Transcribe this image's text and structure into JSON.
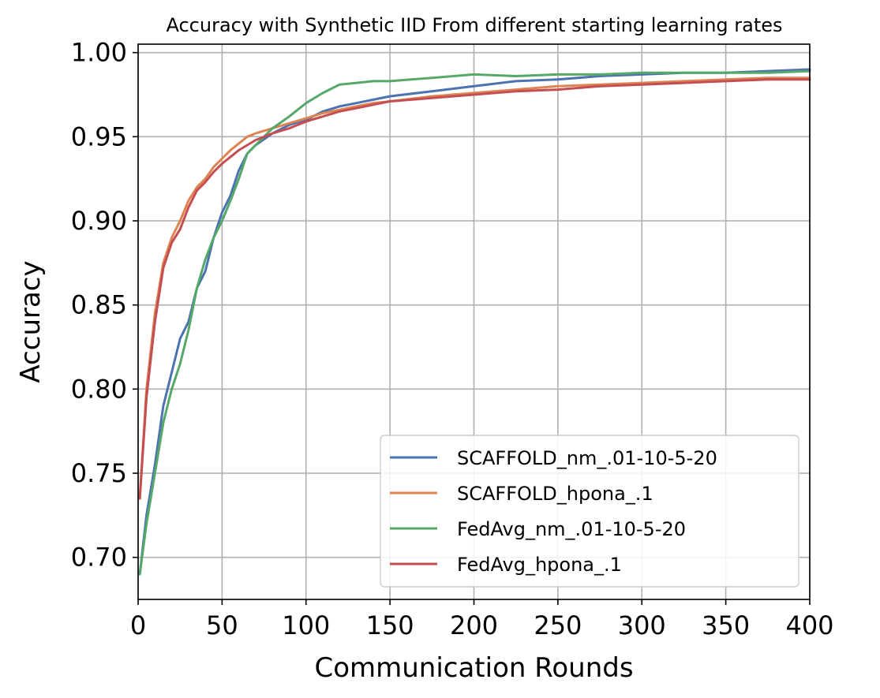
{
  "chart_data": {
    "type": "line",
    "title": "Accuracy with Synthetic IID From different starting learning rates",
    "xlabel": "Communication Rounds",
    "ylabel": "Accuracy",
    "xlim": [
      0,
      400
    ],
    "ylim": [
      0.675,
      1.005
    ],
    "xticks": [
      0,
      50,
      100,
      150,
      200,
      250,
      300,
      350,
      400
    ],
    "yticks": [
      0.7,
      0.75,
      0.8,
      0.85,
      0.9,
      0.95,
      1.0
    ],
    "xtick_labels": [
      "0",
      "50",
      "100",
      "150",
      "200",
      "250",
      "300",
      "350",
      "400"
    ],
    "ytick_labels": [
      "0.70",
      "0.75",
      "0.80",
      "0.85",
      "0.90",
      "0.95",
      "1.00"
    ],
    "grid": true,
    "legend_position": "bottom-right",
    "series": [
      {
        "name": "SCAFFOLD_nm_.01-10-5-20",
        "color": "#4c72b0",
        "x": [
          1,
          5,
          10,
          15,
          20,
          25,
          30,
          35,
          40,
          45,
          50,
          55,
          60,
          65,
          70,
          80,
          90,
          100,
          110,
          120,
          130,
          140,
          150,
          175,
          200,
          225,
          250,
          275,
          300,
          325,
          350,
          375,
          400
        ],
        "y": [
          0.69,
          0.725,
          0.755,
          0.79,
          0.81,
          0.83,
          0.84,
          0.86,
          0.87,
          0.89,
          0.905,
          0.915,
          0.93,
          0.94,
          0.945,
          0.952,
          0.957,
          0.96,
          0.965,
          0.968,
          0.97,
          0.972,
          0.974,
          0.977,
          0.98,
          0.983,
          0.984,
          0.986,
          0.987,
          0.988,
          0.988,
          0.989,
          0.99
        ]
      },
      {
        "name": "SCAFFOLD_hpona_.1",
        "color": "#dd8452",
        "x": [
          1,
          5,
          10,
          15,
          20,
          25,
          30,
          35,
          40,
          45,
          50,
          55,
          60,
          65,
          70,
          80,
          90,
          100,
          110,
          120,
          130,
          140,
          150,
          175,
          200,
          225,
          250,
          275,
          300,
          325,
          350,
          375,
          400
        ],
        "y": [
          0.735,
          0.8,
          0.845,
          0.875,
          0.89,
          0.9,
          0.912,
          0.92,
          0.925,
          0.932,
          0.937,
          0.942,
          0.946,
          0.95,
          0.952,
          0.955,
          0.958,
          0.961,
          0.964,
          0.966,
          0.968,
          0.97,
          0.971,
          0.974,
          0.976,
          0.978,
          0.98,
          0.981,
          0.982,
          0.983,
          0.984,
          0.985,
          0.985
        ]
      },
      {
        "name": "FedAvg_nm_.01-10-5-20",
        "color": "#55a868",
        "x": [
          1,
          5,
          10,
          15,
          20,
          25,
          30,
          35,
          40,
          45,
          50,
          55,
          60,
          65,
          70,
          80,
          90,
          100,
          110,
          120,
          130,
          140,
          150,
          175,
          200,
          225,
          250,
          275,
          300,
          325,
          350,
          375,
          400
        ],
        "y": [
          0.69,
          0.72,
          0.75,
          0.78,
          0.8,
          0.815,
          0.835,
          0.86,
          0.877,
          0.89,
          0.9,
          0.912,
          0.925,
          0.94,
          0.945,
          0.955,
          0.962,
          0.97,
          0.976,
          0.981,
          0.982,
          0.983,
          0.983,
          0.985,
          0.987,
          0.986,
          0.987,
          0.987,
          0.988,
          0.988,
          0.988,
          0.988,
          0.989
        ]
      },
      {
        "name": "FedAvg_hpona_.1",
        "color": "#c44e52",
        "x": [
          1,
          5,
          10,
          15,
          20,
          25,
          30,
          35,
          40,
          45,
          50,
          55,
          60,
          65,
          70,
          80,
          90,
          100,
          110,
          120,
          130,
          140,
          150,
          175,
          200,
          225,
          250,
          275,
          300,
          325,
          350,
          375,
          400
        ],
        "y": [
          0.735,
          0.795,
          0.84,
          0.872,
          0.887,
          0.895,
          0.908,
          0.918,
          0.923,
          0.929,
          0.934,
          0.938,
          0.942,
          0.945,
          0.948,
          0.952,
          0.955,
          0.959,
          0.962,
          0.965,
          0.967,
          0.969,
          0.971,
          0.973,
          0.975,
          0.977,
          0.978,
          0.98,
          0.981,
          0.982,
          0.983,
          0.984,
          0.984
        ]
      }
    ]
  }
}
